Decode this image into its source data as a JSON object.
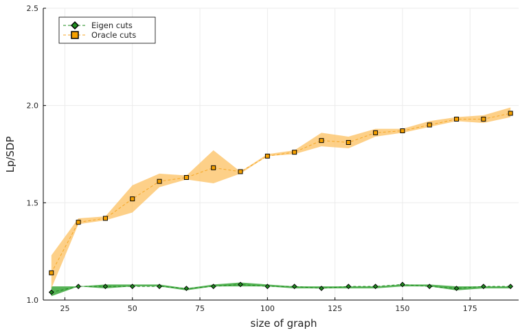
{
  "chart_data": {
    "type": "line",
    "xlabel": "size of graph",
    "ylabel": "Lp/SDP",
    "xlim": [
      17,
      193
    ],
    "ylim": [
      1.0,
      2.5
    ],
    "xticks": [
      25,
      50,
      75,
      100,
      125,
      150,
      175
    ],
    "xtick_labels": [
      "25",
      "50",
      "75",
      "100",
      "125",
      "150",
      "175"
    ],
    "yticks": [
      1.0,
      1.5,
      2.0,
      2.5
    ],
    "ytick_labels": [
      "1.0",
      "1.5",
      "2.0",
      "2.5"
    ],
    "grid": true,
    "legend_position": "top-left",
    "x": [
      20,
      30,
      40,
      50,
      60,
      70,
      80,
      90,
      100,
      110,
      120,
      130,
      140,
      150,
      160,
      170,
      180,
      190
    ],
    "series": [
      {
        "name": "Eigen cuts",
        "color": "#1a8a1a",
        "band_color": "#3aa63a",
        "marker": "diamond",
        "values": [
          1.04,
          1.07,
          1.07,
          1.07,
          1.07,
          1.06,
          1.07,
          1.08,
          1.07,
          1.07,
          1.06,
          1.07,
          1.07,
          1.08,
          1.07,
          1.06,
          1.07,
          1.07
        ],
        "lower": [
          1.02,
          1.07,
          1.06,
          1.07,
          1.07,
          1.05,
          1.07,
          1.07,
          1.07,
          1.06,
          1.06,
          1.06,
          1.06,
          1.07,
          1.07,
          1.05,
          1.06,
          1.06
        ],
        "upper": [
          1.07,
          1.07,
          1.08,
          1.08,
          1.08,
          1.06,
          1.08,
          1.09,
          1.08,
          1.07,
          1.07,
          1.07,
          1.07,
          1.08,
          1.08,
          1.07,
          1.07,
          1.07
        ]
      },
      {
        "name": "Oracle cuts",
        "color": "#f5a623",
        "band_color": "#fdc46a",
        "marker": "square",
        "values": [
          1.14,
          1.4,
          1.42,
          1.52,
          1.61,
          1.63,
          1.68,
          1.66,
          1.74,
          1.76,
          1.82,
          1.81,
          1.86,
          1.87,
          1.9,
          1.93,
          1.93,
          1.96
        ],
        "lower": [
          1.06,
          1.39,
          1.41,
          1.45,
          1.58,
          1.62,
          1.6,
          1.65,
          1.74,
          1.75,
          1.79,
          1.78,
          1.84,
          1.86,
          1.89,
          1.92,
          1.91,
          1.94
        ],
        "upper": [
          1.23,
          1.42,
          1.43,
          1.59,
          1.65,
          1.64,
          1.77,
          1.66,
          1.75,
          1.77,
          1.86,
          1.84,
          1.88,
          1.88,
          1.92,
          1.94,
          1.95,
          1.99
        ]
      }
    ]
  }
}
